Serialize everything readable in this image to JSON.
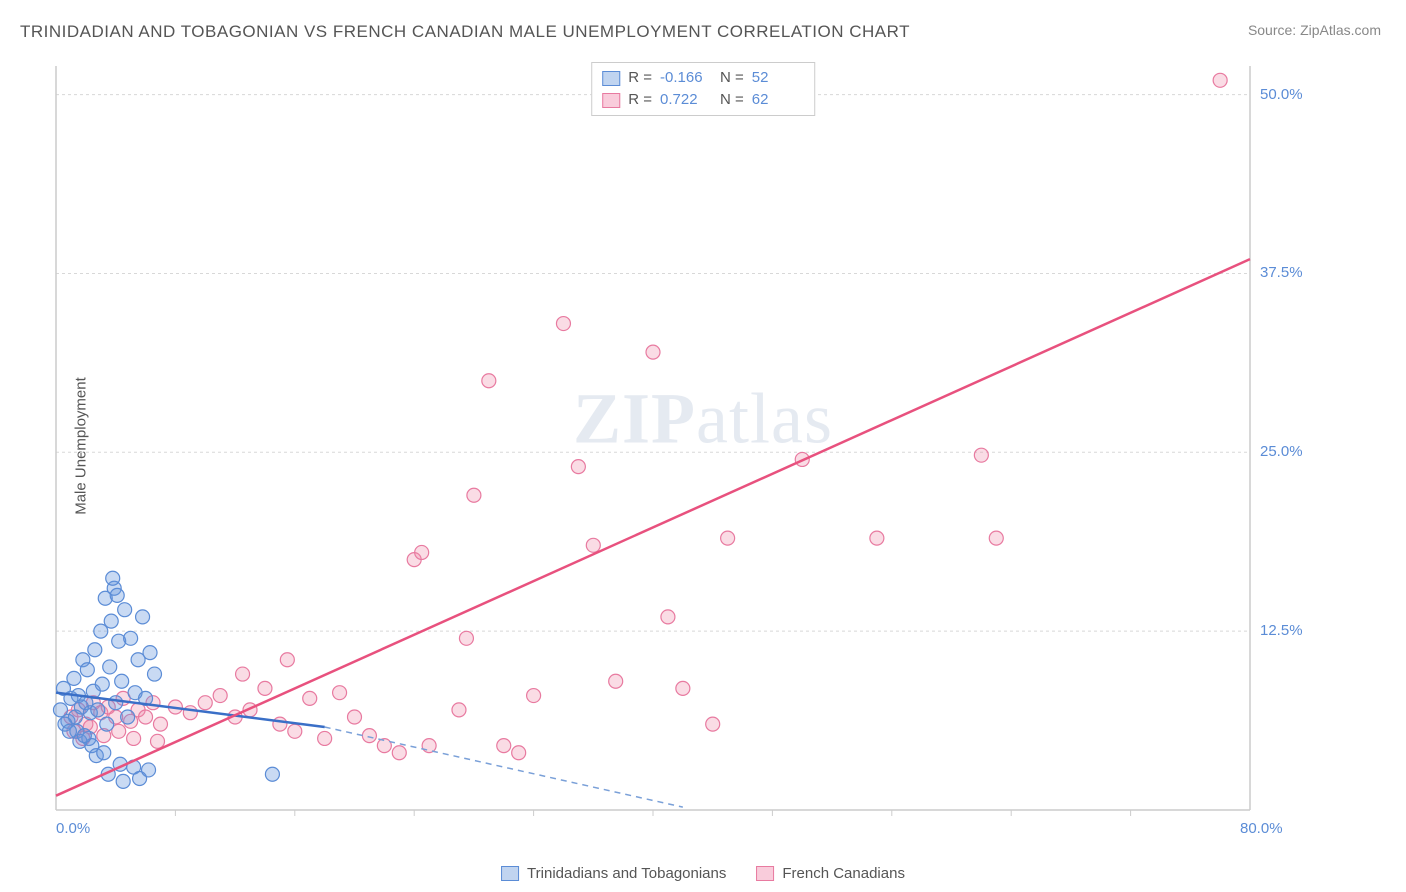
{
  "title": "TRINIDADIAN AND TOBAGONIAN VS FRENCH CANADIAN MALE UNEMPLOYMENT CORRELATION CHART",
  "source": "Source: ZipAtlas.com",
  "ylabel": "Male Unemployment",
  "watermark_zip": "ZIP",
  "watermark_atlas": "atlas",
  "chart": {
    "type": "scatter",
    "xlim": [
      0,
      80
    ],
    "ylim": [
      0,
      52
    ],
    "x_ticks": [
      0,
      80
    ],
    "x_tick_labels": [
      "0.0%",
      "80.0%"
    ],
    "y_ticks": [
      12.5,
      25.0,
      37.5,
      50.0
    ],
    "y_tick_labels": [
      "12.5%",
      "25.0%",
      "37.5%",
      "50.0%"
    ],
    "x_minor_ticks": [
      8,
      16,
      24,
      32,
      40,
      48,
      56,
      64,
      72
    ],
    "background_color": "#ffffff",
    "grid_color": "#d8d8d8",
    "axis_color": "#cccccc",
    "series": [
      {
        "name": "Trinidadians and Tobagonians",
        "marker_color_fill": "rgba(100, 150, 220, 0.35)",
        "marker_color_stroke": "#5b8cd6",
        "legend_fill": "rgba(130, 170, 225, 0.5)",
        "legend_stroke": "#5b8cd6",
        "marker_radius": 7,
        "trend_line_color": "#3a6fc7",
        "trend_dash_color": "#7aa0d8",
        "R": "-0.166",
        "N": "52",
        "trend": {
          "x1": 0,
          "y1": 8.2,
          "x2": 18,
          "y2": 5.8
        },
        "trend_dash": {
          "x1": 18,
          "y1": 5.8,
          "x2": 42,
          "y2": 0.2
        },
        "points": [
          [
            0.3,
            7.0
          ],
          [
            0.5,
            8.5
          ],
          [
            0.8,
            6.2
          ],
          [
            1.0,
            7.8
          ],
          [
            1.2,
            9.2
          ],
          [
            1.3,
            6.5
          ],
          [
            1.5,
            8.0
          ],
          [
            1.7,
            7.2
          ],
          [
            1.8,
            10.5
          ],
          [
            2.0,
            7.5
          ],
          [
            2.1,
            9.8
          ],
          [
            2.3,
            6.8
          ],
          [
            2.5,
            8.3
          ],
          [
            2.6,
            11.2
          ],
          [
            2.8,
            7.0
          ],
          [
            3.0,
            12.5
          ],
          [
            3.1,
            8.8
          ],
          [
            3.3,
            14.8
          ],
          [
            3.4,
            6.0
          ],
          [
            3.6,
            10.0
          ],
          [
            3.7,
            13.2
          ],
          [
            3.9,
            15.5
          ],
          [
            4.0,
            7.5
          ],
          [
            4.2,
            11.8
          ],
          [
            4.4,
            9.0
          ],
          [
            4.6,
            14.0
          ],
          [
            4.8,
            6.5
          ],
          [
            5.0,
            12.0
          ],
          [
            5.3,
            8.2
          ],
          [
            5.5,
            10.5
          ],
          [
            5.8,
            13.5
          ],
          [
            6.0,
            7.8
          ],
          [
            6.3,
            11.0
          ],
          [
            6.6,
            9.5
          ],
          [
            2.2,
            5.0
          ],
          [
            2.4,
            4.5
          ],
          [
            2.7,
            3.8
          ],
          [
            3.2,
            4.0
          ],
          [
            3.5,
            2.5
          ],
          [
            4.3,
            3.2
          ],
          [
            4.5,
            2.0
          ],
          [
            5.2,
            3.0
          ],
          [
            5.6,
            2.2
          ],
          [
            6.2,
            2.8
          ],
          [
            1.4,
            5.5
          ],
          [
            1.6,
            4.8
          ],
          [
            1.9,
            5.2
          ],
          [
            0.6,
            6.0
          ],
          [
            0.9,
            5.5
          ],
          [
            14.5,
            2.5
          ],
          [
            3.8,
            16.2
          ],
          [
            4.1,
            15.0
          ]
        ]
      },
      {
        "name": "French Canadians",
        "marker_color_fill": "rgba(240, 140, 170, 0.3)",
        "marker_color_stroke": "#e87aa0",
        "legend_fill": "rgba(245, 170, 195, 0.6)",
        "legend_stroke": "#e87aa0",
        "marker_radius": 7,
        "trend_line_color": "#e8517e",
        "R": "0.722",
        "N": "62",
        "trend": {
          "x1": 0,
          "y1": 1.0,
          "x2": 80,
          "y2": 38.5
        },
        "points": [
          [
            1.0,
            6.5
          ],
          [
            1.5,
            7.0
          ],
          [
            2.0,
            6.0
          ],
          [
            2.5,
            7.5
          ],
          [
            3.0,
            6.8
          ],
          [
            3.5,
            7.2
          ],
          [
            4.0,
            6.5
          ],
          [
            4.5,
            7.8
          ],
          [
            5.0,
            6.2
          ],
          [
            5.5,
            7.0
          ],
          [
            6.0,
            6.5
          ],
          [
            6.5,
            7.5
          ],
          [
            7.0,
            6.0
          ],
          [
            8.0,
            7.2
          ],
          [
            9.0,
            6.8
          ],
          [
            10.0,
            7.5
          ],
          [
            11.0,
            8.0
          ],
          [
            12.0,
            6.5
          ],
          [
            12.5,
            9.5
          ],
          [
            13.0,
            7.0
          ],
          [
            14.0,
            8.5
          ],
          [
            15.0,
            6.0
          ],
          [
            15.5,
            10.5
          ],
          [
            16.0,
            5.5
          ],
          [
            17.0,
            7.8
          ],
          [
            18.0,
            5.0
          ],
          [
            19.0,
            8.2
          ],
          [
            20.0,
            6.5
          ],
          [
            21.0,
            5.2
          ],
          [
            22.0,
            4.5
          ],
          [
            23.0,
            4.0
          ],
          [
            24.0,
            17.5
          ],
          [
            24.5,
            18.0
          ],
          [
            25.0,
            4.5
          ],
          [
            27.0,
            7.0
          ],
          [
            27.5,
            12.0
          ],
          [
            28.0,
            22.0
          ],
          [
            29.0,
            30.0
          ],
          [
            30.0,
            4.5
          ],
          [
            31.0,
            4.0
          ],
          [
            32.0,
            8.0
          ],
          [
            34.0,
            34.0
          ],
          [
            35.0,
            24.0
          ],
          [
            36.0,
            18.5
          ],
          [
            37.5,
            9.0
          ],
          [
            40.0,
            32.0
          ],
          [
            41.0,
            13.5
          ],
          [
            42.0,
            8.5
          ],
          [
            44.0,
            6.0
          ],
          [
            45.0,
            19.0
          ],
          [
            50.0,
            24.5
          ],
          [
            55.0,
            19.0
          ],
          [
            62.0,
            24.8
          ],
          [
            63.0,
            19.0
          ],
          [
            78.0,
            51.0
          ],
          [
            1.2,
            5.5
          ],
          [
            1.8,
            5.0
          ],
          [
            2.3,
            5.8
          ],
          [
            3.2,
            5.2
          ],
          [
            4.2,
            5.5
          ],
          [
            5.2,
            5.0
          ],
          [
            6.8,
            4.8
          ]
        ]
      }
    ]
  },
  "legend": {
    "series1_label": "Trinidadians and Tobagonians",
    "series2_label": "French Canadians"
  },
  "stats_labels": {
    "R": "R =",
    "N": "N ="
  }
}
